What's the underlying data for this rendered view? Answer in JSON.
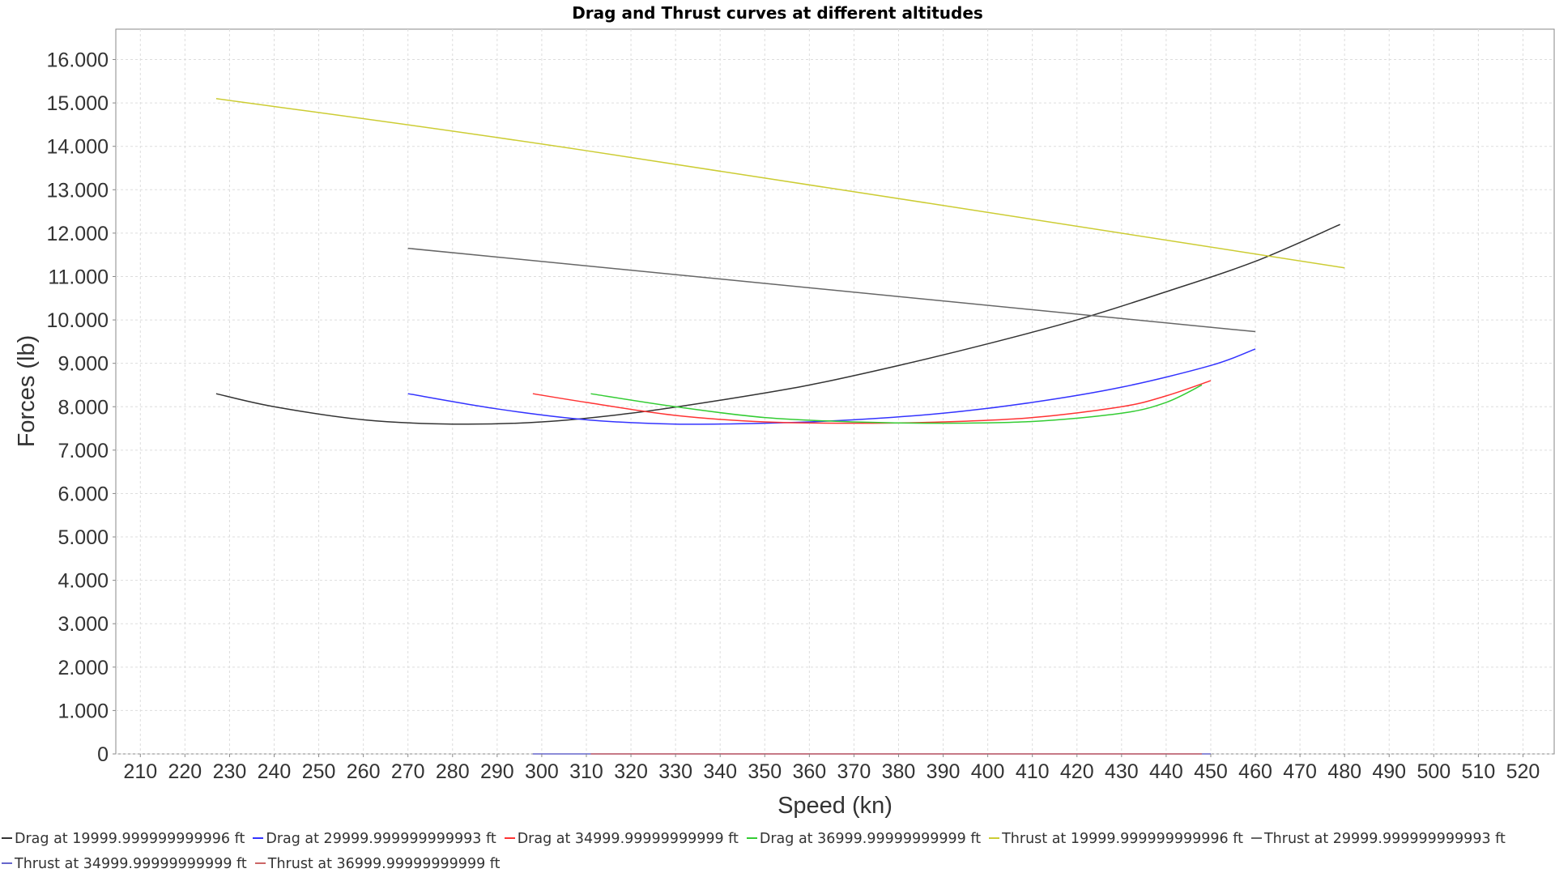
{
  "chart_data": {
    "type": "line",
    "title": "Drag and Thrust curves at different altitudes",
    "xlabel": "Speed (kn)",
    "ylabel": "Forces (lb)",
    "xlim": [
      204.5,
      527
    ],
    "ylim": [
      0,
      16700
    ],
    "xticks": [
      "210",
      "220",
      "230",
      "240",
      "250",
      "260",
      "270",
      "280",
      "290",
      "300",
      "310",
      "320",
      "330",
      "340",
      "350",
      "360",
      "370",
      "380",
      "390",
      "400",
      "410",
      "420",
      "430",
      "440",
      "450",
      "460",
      "470",
      "480",
      "490",
      "500",
      "510",
      "520"
    ],
    "yticks": [
      "0",
      "1.000",
      "2.000",
      "3.000",
      "4.000",
      "5.000",
      "6.000",
      "7.000",
      "8.000",
      "9.000",
      "10.000",
      "11.000",
      "12.000",
      "13.000",
      "14.000",
      "15.000",
      "16.000"
    ],
    "grid": true,
    "legend_position": "bottom",
    "series": [
      {
        "name": "Drag at 19999.999999999996 ft",
        "color": "#333333",
        "x": [
          227,
          240,
          260,
          280,
          300,
          320,
          340,
          360,
          380,
          400,
          420,
          440,
          460,
          479
        ],
        "y": [
          8300,
          8000,
          7700,
          7600,
          7650,
          7850,
          8150,
          8500,
          8950,
          9450,
          10000,
          10650,
          11350,
          12200
        ]
      },
      {
        "name": "Drag at 29999.999999999993 ft",
        "color": "#3333ff",
        "x": [
          270,
          290,
          310,
          330,
          350,
          370,
          390,
          410,
          430,
          450,
          460
        ],
        "y": [
          8300,
          7950,
          7700,
          7600,
          7620,
          7700,
          7850,
          8100,
          8450,
          8950,
          9330
        ]
      },
      {
        "name": "Drag at 34999.99999999999 ft",
        "color": "#ff3333",
        "x": [
          298,
          310,
          330,
          350,
          370,
          390,
          410,
          430,
          440,
          450
        ],
        "y": [
          8300,
          8100,
          7800,
          7650,
          7620,
          7650,
          7750,
          8000,
          8250,
          8600
        ]
      },
      {
        "name": "Drag at 36999.99999999999 ft",
        "color": "#33cc33",
        "x": [
          311,
          330,
          350,
          370,
          390,
          410,
          430,
          440,
          448
        ],
        "y": [
          8300,
          8000,
          7750,
          7650,
          7620,
          7660,
          7850,
          8100,
          8500
        ]
      },
      {
        "name": "Thrust at 19999.999999999996 ft",
        "color": "#cccc33",
        "x": [
          227,
          310,
          480
        ],
        "y": [
          15100,
          13900,
          11200
        ]
      },
      {
        "name": "Thrust at 29999.999999999993 ft",
        "color": "#666666",
        "x": [
          270,
          460
        ],
        "y": [
          11650,
          9730
        ]
      },
      {
        "name": "Thrust at 34999.99999999999 ft",
        "color": "#6666cc",
        "x": [
          298,
          450
        ],
        "y": [
          0,
          0
        ]
      },
      {
        "name": "Thrust at 36999.99999999999 ft",
        "color": "#cc6666",
        "x": [
          311,
          448
        ],
        "y": [
          0,
          0
        ]
      }
    ]
  }
}
